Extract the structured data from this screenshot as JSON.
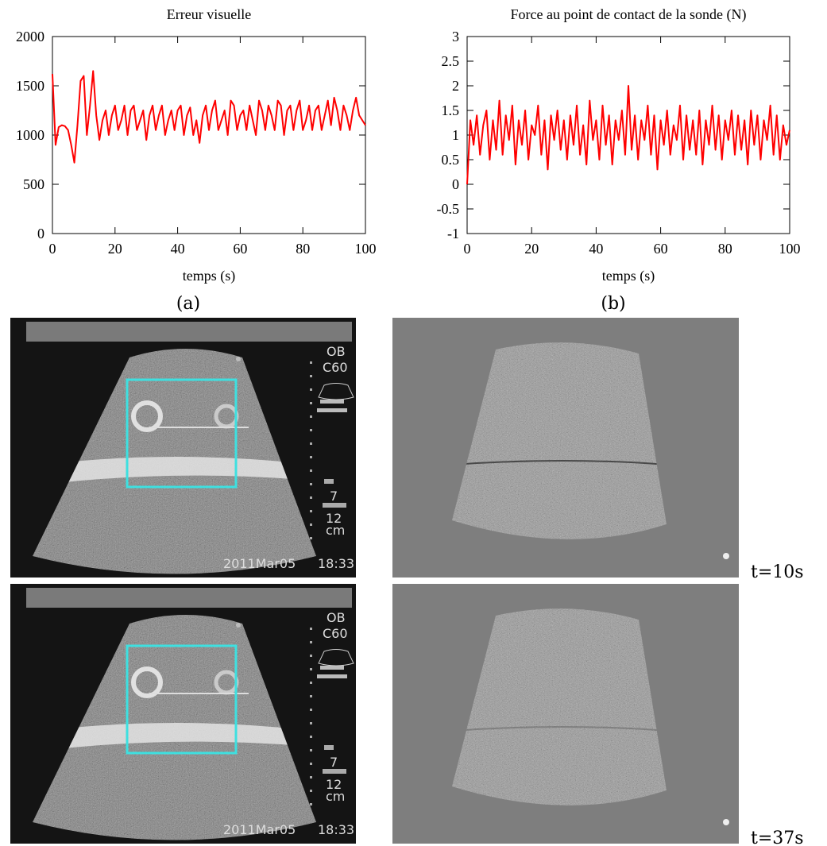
{
  "chart_data": [
    {
      "type": "line",
      "title": "Erreur visuelle",
      "xlabel": "temps (s)",
      "color": "#ff0000",
      "x": [
        0,
        1,
        2,
        3,
        4,
        5,
        6,
        7,
        8,
        9,
        10,
        11,
        12,
        13,
        14,
        15,
        16,
        17,
        18,
        19,
        20,
        21,
        22,
        23,
        24,
        25,
        26,
        27,
        28,
        29,
        30,
        31,
        32,
        33,
        34,
        35,
        36,
        37,
        38,
        39,
        40,
        41,
        42,
        43,
        44,
        45,
        46,
        47,
        48,
        49,
        50,
        51,
        52,
        53,
        54,
        55,
        56,
        57,
        58,
        59,
        60,
        61,
        62,
        63,
        64,
        65,
        66,
        67,
        68,
        69,
        70,
        71,
        72,
        73,
        74,
        75,
        76,
        77,
        78,
        79,
        80,
        81,
        82,
        83,
        84,
        85,
        86,
        87,
        88,
        89,
        90,
        91,
        92,
        93,
        94,
        95,
        96,
        97,
        98,
        99,
        100
      ],
      "values": [
        1620,
        900,
        1080,
        1100,
        1090,
        1050,
        900,
        720,
        1100,
        1550,
        1600,
        1000,
        1300,
        1650,
        1200,
        950,
        1150,
        1250,
        1000,
        1200,
        1300,
        1050,
        1150,
        1300,
        1000,
        1250,
        1300,
        1050,
        1150,
        1250,
        950,
        1200,
        1300,
        1050,
        1200,
        1300,
        1000,
        1150,
        1250,
        1050,
        1250,
        1300,
        1000,
        1200,
        1280,
        1000,
        1150,
        920,
        1200,
        1300,
        1050,
        1250,
        1350,
        1050,
        1150,
        1250,
        1000,
        1350,
        1300,
        1050,
        1200,
        1250,
        1050,
        1300,
        1150,
        1000,
        1350,
        1250,
        1050,
        1300,
        1200,
        1050,
        1350,
        1300,
        1000,
        1250,
        1300,
        1050,
        1250,
        1350,
        1050,
        1150,
        1300,
        1050,
        1250,
        1300,
        1050,
        1200,
        1350,
        1100,
        1380,
        1250,
        1050,
        1300,
        1200,
        1050,
        1250,
        1380,
        1200,
        1150,
        1100
      ],
      "xlim": [
        0,
        100
      ],
      "xticks": [
        0,
        20,
        40,
        60,
        80,
        100
      ],
      "ylim": [
        0,
        2000
      ],
      "yticks": [
        0,
        500,
        1000,
        1500,
        2000
      ]
    },
    {
      "type": "line",
      "title": "Force au point de contact de la sonde (N)",
      "xlabel": "temps (s)",
      "color": "#ff0000",
      "x": [
        0,
        1,
        2,
        3,
        4,
        5,
        6,
        7,
        8,
        9,
        10,
        11,
        12,
        13,
        14,
        15,
        16,
        17,
        18,
        19,
        20,
        21,
        22,
        23,
        24,
        25,
        26,
        27,
        28,
        29,
        30,
        31,
        32,
        33,
        34,
        35,
        36,
        37,
        38,
        39,
        40,
        41,
        42,
        43,
        44,
        45,
        46,
        47,
        48,
        49,
        50,
        51,
        52,
        53,
        54,
        55,
        56,
        57,
        58,
        59,
        60,
        61,
        62,
        63,
        64,
        65,
        66,
        67,
        68,
        69,
        70,
        71,
        72,
        73,
        74,
        75,
        76,
        77,
        78,
        79,
        80,
        81,
        82,
        83,
        84,
        85,
        86,
        87,
        88,
        89,
        90,
        91,
        92,
        93,
        94,
        95,
        96,
        97,
        98,
        99,
        100
      ],
      "values": [
        0,
        1.3,
        0.8,
        1.4,
        0.6,
        1.2,
        1.5,
        0.5,
        1.3,
        0.7,
        1.7,
        0.6,
        1.4,
        0.9,
        1.6,
        0.4,
        1.3,
        0.8,
        1.5,
        0.5,
        1.2,
        1.0,
        1.6,
        0.6,
        1.3,
        0.3,
        1.4,
        0.9,
        1.5,
        0.7,
        1.3,
        0.5,
        1.4,
        0.8,
        1.6,
        0.6,
        1.2,
        0.4,
        1.7,
        0.9,
        1.3,
        0.5,
        1.6,
        0.8,
        1.4,
        0.4,
        1.3,
        0.9,
        1.5,
        0.6,
        2.0,
        0.7,
        1.4,
        0.5,
        1.3,
        0.9,
        1.6,
        0.6,
        1.4,
        0.3,
        1.3,
        0.8,
        1.5,
        0.6,
        1.2,
        0.9,
        1.6,
        0.5,
        1.4,
        0.7,
        1.3,
        0.6,
        1.5,
        0.4,
        1.3,
        0.8,
        1.6,
        0.7,
        1.4,
        0.5,
        1.3,
        0.9,
        1.5,
        0.6,
        1.4,
        0.7,
        1.3,
        0.4,
        1.5,
        0.8,
        1.4,
        0.5,
        1.3,
        0.9,
        1.6,
        0.6,
        1.4,
        0.5,
        1.2,
        0.8,
        1.1
      ],
      "xlim": [
        0,
        100
      ],
      "xticks": [
        0,
        20,
        40,
        60,
        80,
        100
      ],
      "ylim": [
        -1,
        3
      ],
      "yticks": [
        -1,
        -0.5,
        0,
        0.5,
        1,
        1.5,
        2,
        2.5,
        3
      ]
    }
  ],
  "captions": [
    "(a)",
    "(b)"
  ],
  "images": [
    {
      "label": "t=10s",
      "mode": "OB",
      "probe": "C60",
      "focus": "7",
      "depth": "12",
      "unit": "cm",
      "date": "2011Mar05",
      "time": "18:33"
    },
    {
      "label": "t=37s",
      "mode": "OB",
      "probe": "C60",
      "focus": "7",
      "depth": "12",
      "unit": "cm",
      "date": "2011Mar05",
      "time": "18:33"
    }
  ]
}
